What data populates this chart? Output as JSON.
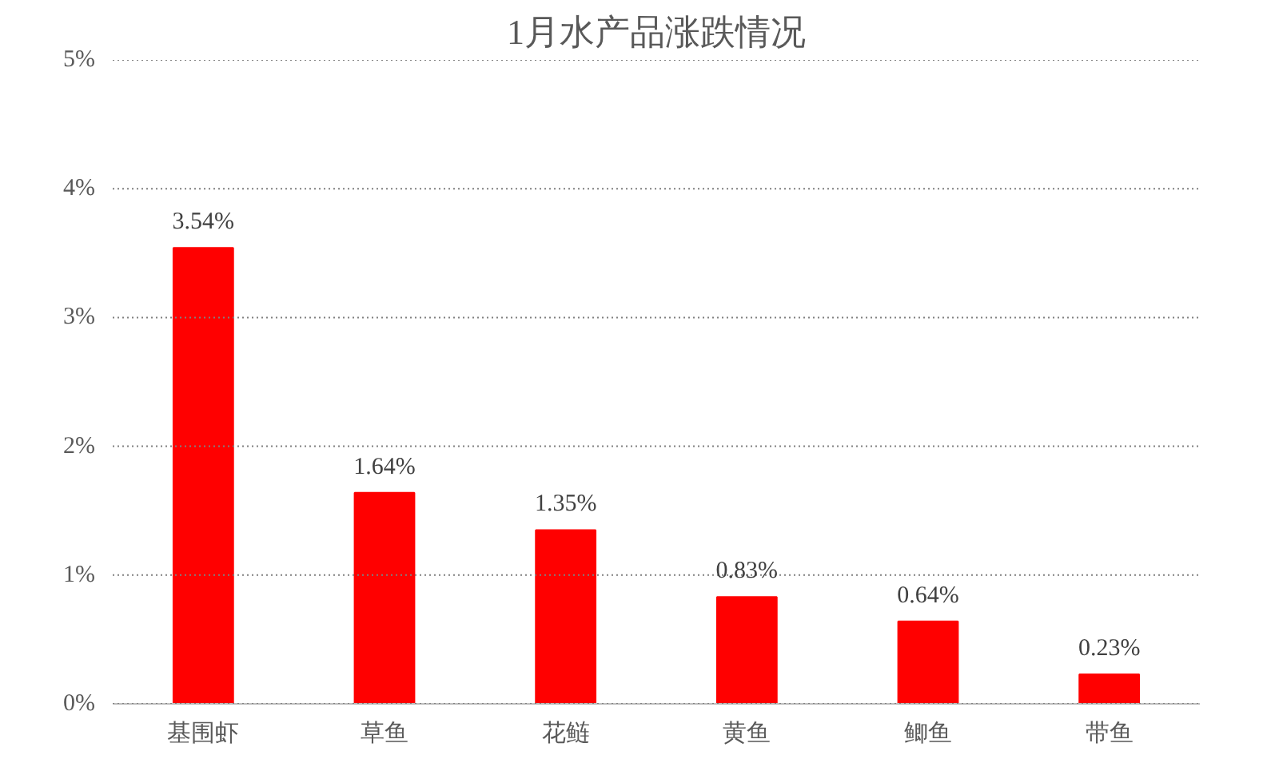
{
  "chart_data": {
    "type": "bar",
    "title": "1月水产品涨跌情况",
    "categories": [
      "基围虾",
      "草鱼",
      "花鲢",
      "黄鱼",
      "鲫鱼",
      "带鱼"
    ],
    "values": [
      3.54,
      1.64,
      1.35,
      0.83,
      0.64,
      0.23
    ],
    "value_labels": [
      "3.54%",
      "1.64%",
      "1.35%",
      "0.83%",
      "0.64%",
      "0.23%"
    ],
    "color": "#ff0000",
    "ylim": [
      0,
      5
    ],
    "yticks": [
      {
        "value": 0,
        "label": "0%"
      },
      {
        "value": 1,
        "label": "1%"
      },
      {
        "value": 2,
        "label": "2%"
      },
      {
        "value": 3,
        "label": "3%"
      },
      {
        "value": 4,
        "label": "4%"
      },
      {
        "value": 5,
        "label": "5%"
      }
    ],
    "grid": "y"
  }
}
